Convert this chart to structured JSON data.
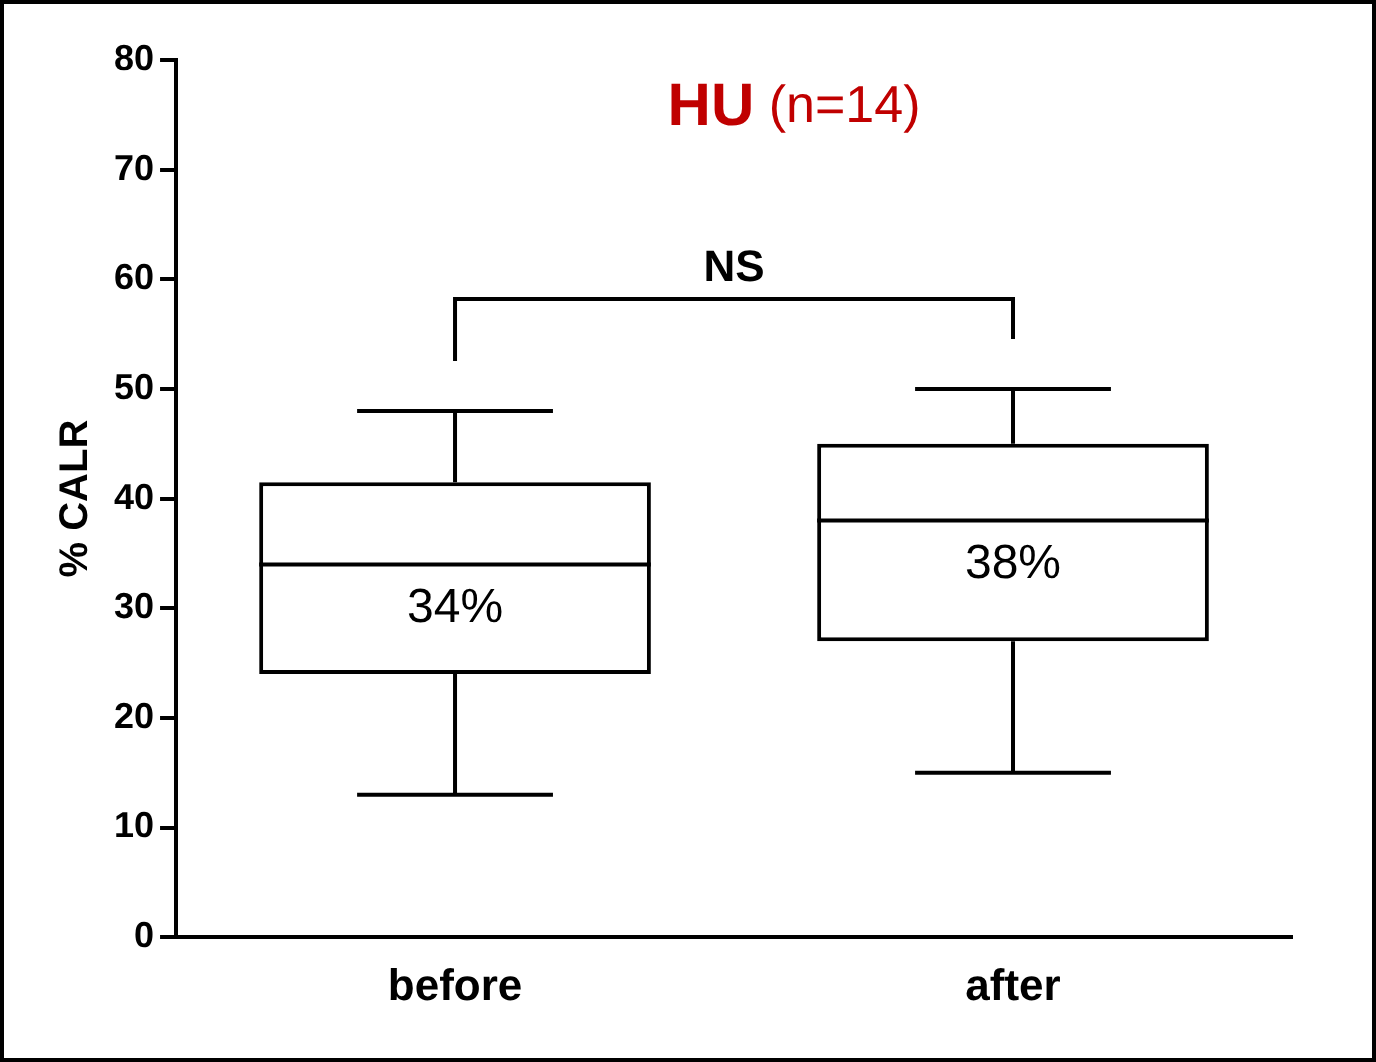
{
  "chart_data": {
    "type": "box",
    "title": "HU (n=14)",
    "ylabel": "% CALR",
    "categories": [
      "before",
      "after"
    ],
    "boxes": [
      {
        "low": 13,
        "q1": 24,
        "median": 34,
        "q3": 41.5,
        "high": 48
      },
      {
        "low": 15,
        "q1": 27,
        "median": 38,
        "q3": 45,
        "high": 50
      }
    ],
    "ylim": [
      0,
      80
    ],
    "yticks": [
      0,
      10,
      20,
      30,
      40,
      50,
      60,
      70,
      80
    ],
    "grid": false,
    "legend": false,
    "annotations": [
      "NS",
      {
        "text": "34%",
        "x": "before",
        "y": 34
      },
      {
        "text": "38%",
        "x": "after",
        "y": 38
      }
    ]
  }
}
